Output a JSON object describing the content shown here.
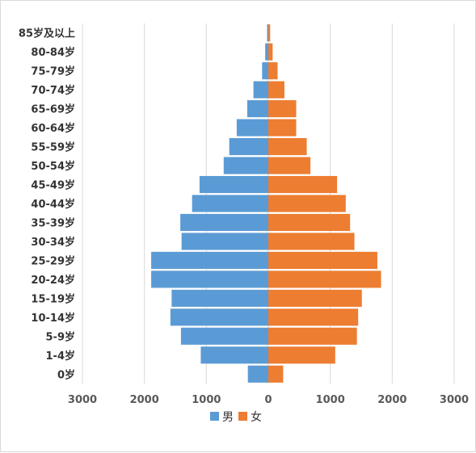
{
  "chart_data": {
    "type": "bar",
    "orientation": "horizontal",
    "layout": "population-pyramid",
    "categories": [
      "0岁",
      "1-4岁",
      "5-9岁",
      "10-14岁",
      "15-19岁",
      "20-24岁",
      "25-29岁",
      "30-34岁",
      "35-39岁",
      "40-44岁",
      "45-49岁",
      "50-54岁",
      "55-59岁",
      "60-64岁",
      "65-69岁",
      "70-74岁",
      "75-79岁",
      "80-84岁",
      "85岁及以上"
    ],
    "series": [
      {
        "name": "男",
        "color": "#5b9bd5",
        "direction": "left",
        "values": [
          330,
          1090,
          1410,
          1580,
          1560,
          1890,
          1890,
          1400,
          1420,
          1230,
          1110,
          720,
          630,
          510,
          340,
          240,
          100,
          50,
          20
        ]
      },
      {
        "name": "女",
        "color": "#ed7d31",
        "direction": "right",
        "values": [
          240,
          1080,
          1430,
          1450,
          1510,
          1820,
          1760,
          1390,
          1320,
          1250,
          1110,
          680,
          620,
          450,
          450,
          260,
          150,
          70,
          30
        ]
      }
    ],
    "xaxis": {
      "range": [
        -3000,
        3000
      ],
      "ticks": [
        -3000,
        -2000,
        -1000,
        0,
        1000,
        2000,
        3000
      ],
      "tick_labels": [
        "3000",
        "2000",
        "1000",
        "0",
        "1000",
        "2000",
        "3000"
      ]
    },
    "grid": true,
    "legend_position": "bottom",
    "gridline_color": "#d9d9d9"
  }
}
